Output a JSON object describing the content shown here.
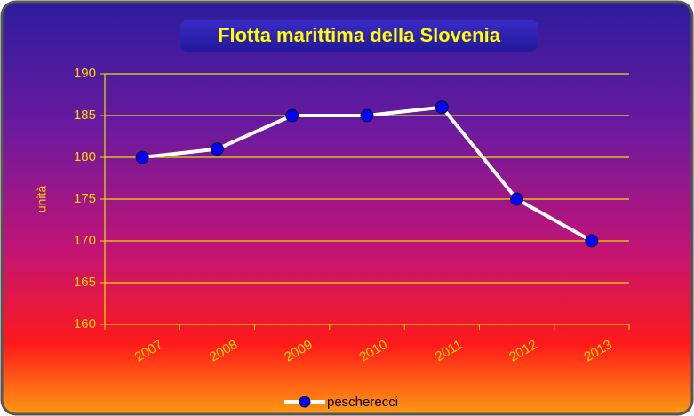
{
  "chart_data": {
    "type": "line",
    "title": "Flotta marittima della Slovenia",
    "y_label": "unità",
    "categories": [
      "2007",
      "2008",
      "2009",
      "2010",
      "2011",
      "2012",
      "2013"
    ],
    "series": [
      {
        "name": "pescherecci",
        "color": "#ffffff",
        "marker_color": "#0000ff",
        "values": [
          180,
          181,
          185,
          185,
          186,
          175,
          170
        ]
      }
    ],
    "ylim": [
      160,
      190
    ],
    "yticks": [
      160,
      165,
      170,
      175,
      180,
      185,
      190
    ],
    "grid": true,
    "legend": "bottom"
  }
}
